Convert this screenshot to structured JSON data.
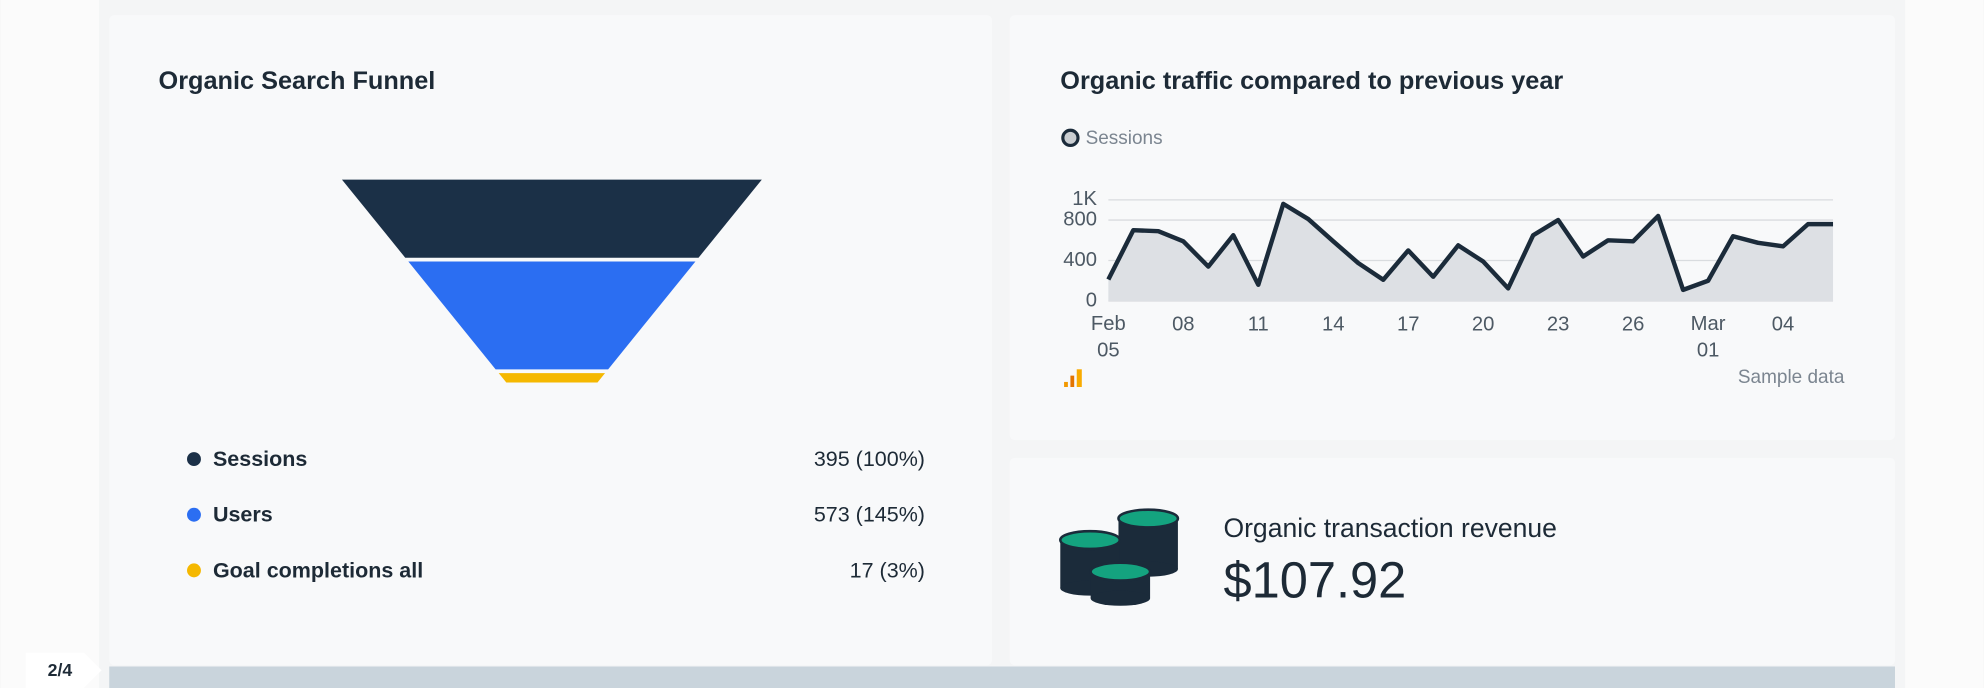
{
  "chart_data": [
    {
      "type": "funnel",
      "title": "Organic Search Funnel",
      "categories": [
        "Sessions",
        "Users",
        "Goal completions all"
      ],
      "values": [
        395,
        573,
        17
      ],
      "value_labels": [
        "395  (100%)",
        "573  (145%)",
        "17  (3%)"
      ],
      "colors": [
        "#1b3047",
        "#2b6ef2",
        "#f5b800"
      ]
    },
    {
      "type": "line",
      "title": "Organic traffic compared to previous year",
      "categories": [
        "Feb 05",
        null,
        null,
        "08",
        null,
        null,
        "11",
        null,
        null,
        "14",
        null,
        null,
        "17",
        null,
        null,
        "20",
        null,
        null,
        "23",
        null,
        null,
        "26",
        null,
        null,
        "Mar 01",
        null,
        null,
        "04",
        null,
        null
      ],
      "series": [
        {
          "name": "Sessions",
          "color": "#1b2b3a",
          "values": [
            212,
            700,
            690,
            590,
            340,
            650,
            160,
            960,
            810,
            590,
            375,
            210,
            500,
            240,
            550,
            390,
            125,
            650,
            800,
            440,
            600,
            590,
            840,
            110,
            200,
            640,
            575,
            540,
            760,
            760
          ]
        }
      ],
      "ylim": [
        0,
        1100
      ],
      "yticks": [
        0,
        400,
        800,
        {
          "value": 1000,
          "label": "1K"
        }
      ],
      "grid": true,
      "area_fill": "#dde0e4",
      "note": "Sample data"
    }
  ],
  "revenue": {
    "title": "Organic transaction revenue",
    "value": "$107.92"
  },
  "page_indicator": "2/4"
}
